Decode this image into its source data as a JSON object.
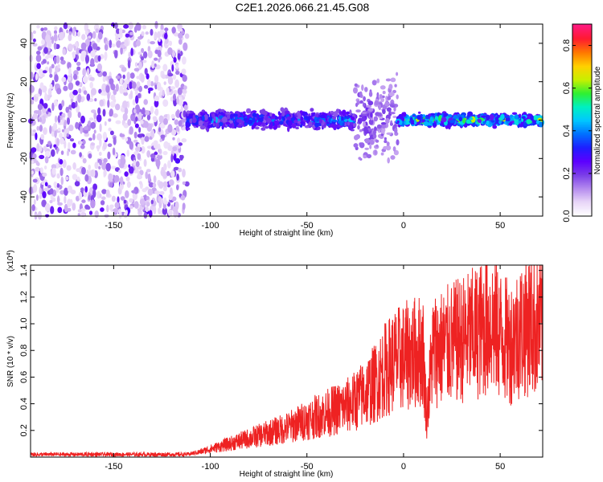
{
  "title": "C2E1.2026.066.21.45.G08",
  "chart_data": [
    {
      "type": "heatmap",
      "name": "spectrogram",
      "xlabel": "Height of straight line (km)",
      "ylabel": "Frequency (Hz)",
      "xlim": [
        -193,
        72
      ],
      "ylim": [
        -50,
        50
      ],
      "xticks": [
        -150,
        -100,
        -50,
        0,
        50
      ],
      "yticks": [
        -40,
        -20,
        0,
        20,
        40
      ],
      "colorbar": {
        "label": "Normalized spectral amplitude",
        "range": [
          0,
          0.9
        ],
        "ticks": [
          0.0,
          0.2,
          0.4,
          0.6,
          0.8
        ],
        "colors": [
          "#ffffff",
          "#e8d6f8",
          "#b48aee",
          "#7a3de8",
          "#5c00ff",
          "#1e1eff",
          "#0070ff",
          "#00c8ff",
          "#00f0c0",
          "#30f030",
          "#c8f000",
          "#ffd000",
          "#ff7800",
          "#ff1a30",
          "#ff1a80"
        ]
      },
      "regions": [
        {
          "x_range": [
            -193,
            -112
          ],
          "freq_range": [
            -50,
            50
          ],
          "amplitude": 0.1,
          "description": "broadband noise"
        },
        {
          "x_range": [
            -112,
            -25
          ],
          "center_freq": 0,
          "spread": 6,
          "amplitude": 0.35
        },
        {
          "x_range": [
            -25,
            -15
          ],
          "center_freq": 0,
          "spread": 30,
          "amplitude": 0.15
        },
        {
          "x_range": [
            -15,
            -3
          ],
          "center_freq": 0,
          "spread": 30,
          "amplitude": 0.12
        },
        {
          "x_range": [
            -3,
            72
          ],
          "center_freq": 0,
          "spread": 4,
          "amplitude": 0.55
        }
      ]
    },
    {
      "type": "line",
      "name": "snr",
      "xlabel": "Height of straight line (km)",
      "ylabel": "SNR (10 * v/v)",
      "y_exponent_label": "(x10",
      "y_exponent": "4",
      "y_exponent_close": ")",
      "xlim": [
        -193,
        72
      ],
      "ylim": [
        0.0,
        1.44
      ],
      "xticks": [
        -150,
        -100,
        -50,
        0,
        50
      ],
      "yticks": [
        0.2,
        0.4,
        0.6,
        0.8,
        1.0,
        1.2,
        1.4
      ],
      "color": "#ee2222",
      "series": [
        {
          "name": "SNR",
          "x": [
            -193,
            -180,
            -160,
            -140,
            -120,
            -112,
            -105,
            -100,
            -90,
            -80,
            -70,
            -60,
            -50,
            -40,
            -30,
            -25,
            -20,
            -15,
            -10,
            -5,
            0,
            5,
            10,
            12,
            15,
            20,
            30,
            40,
            45,
            50,
            55,
            60,
            65,
            72
          ],
          "y": [
            0.02,
            0.02,
            0.02,
            0.02,
            0.02,
            0.02,
            0.04,
            0.06,
            0.1,
            0.14,
            0.18,
            0.22,
            0.28,
            0.33,
            0.38,
            0.42,
            0.48,
            0.55,
            0.65,
            0.72,
            0.75,
            0.78,
            0.8,
            0.3,
            0.8,
            0.82,
            0.88,
            0.95,
            1.02,
            0.92,
            0.85,
            0.95,
            1.0,
            0.98
          ]
        }
      ]
    }
  ]
}
